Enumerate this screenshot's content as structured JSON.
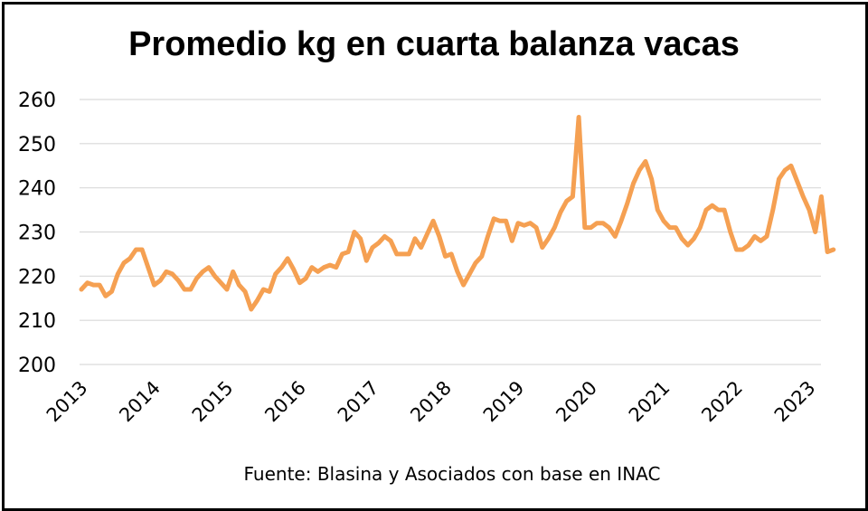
{
  "chart_data": {
    "type": "line",
    "title": "Promedio kg en cuarta balanza vacas",
    "source": "Fuente: Blasina y Asociados con base en INAC",
    "xlabel": "",
    "ylabel": "",
    "ylim": [
      200,
      260
    ],
    "yticks": [
      200,
      210,
      220,
      230,
      240,
      250,
      260
    ],
    "xticks": [
      "2013",
      "2014",
      "2015",
      "2016",
      "2017",
      "2018",
      "2019",
      "2020",
      "2021",
      "2022",
      "2023"
    ],
    "grid": true,
    "legend": "none",
    "series": [
      {
        "color": "#f5a052",
        "start": "2013-01",
        "frequency": "monthly",
        "values": [
          217,
          218.5,
          218,
          218,
          215.5,
          216.5,
          220.5,
          223,
          224,
          226,
          226,
          222,
          218,
          219,
          221,
          220.5,
          219,
          217,
          217,
          219.5,
          221,
          222,
          220,
          218.5,
          217,
          221,
          218,
          216.5,
          212.5,
          214.5,
          217,
          216.5,
          220.5,
          222,
          224,
          221.5,
          218.5,
          219.5,
          222,
          221,
          222,
          222.5,
          222,
          225,
          225.5,
          230,
          228.5,
          223.5,
          226.5,
          227.5,
          229,
          228,
          225,
          225,
          225,
          228.5,
          226.5,
          229.5,
          232.5,
          229,
          224.5,
          225,
          221,
          218,
          220.5,
          223,
          224.5,
          229,
          233,
          232.5,
          232.5,
          228,
          232,
          231.5,
          232,
          231,
          226.5,
          228.5,
          231,
          234.5,
          237,
          238,
          256,
          231,
          231,
          232,
          232,
          231,
          229,
          232.5,
          236.5,
          241,
          244,
          246,
          242,
          235,
          232.5,
          231,
          231,
          228.5,
          227,
          228.5,
          231,
          235,
          236,
          235,
          235,
          230,
          226,
          226,
          227,
          229,
          228,
          229,
          235,
          242,
          244,
          245,
          241.5,
          238,
          235,
          230,
          238,
          225.5,
          226
        ]
      }
    ]
  }
}
